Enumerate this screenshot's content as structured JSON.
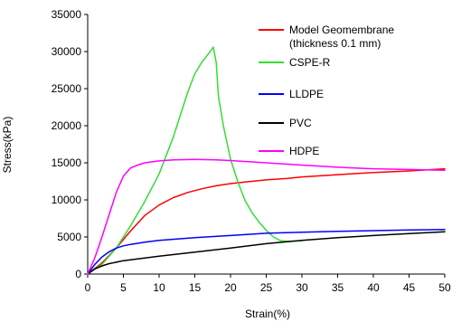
{
  "chart_data": {
    "type": "line",
    "title": "",
    "xlabel": "Strain(%)",
    "ylabel": "Stress(kPa)",
    "xlim": [
      0,
      50
    ],
    "ylim": [
      0,
      35000
    ],
    "x_ticks": [
      "0",
      "5",
      "10",
      "15",
      "20",
      "25",
      "30",
      "35",
      "40",
      "45",
      "50"
    ],
    "y_ticks": [
      "0",
      "5000",
      "10000",
      "15000",
      "20000",
      "25000",
      "30000",
      "35000"
    ],
    "grid": false,
    "legend_position": "top-right",
    "legend_entries": [
      {
        "label": "Model Geomembrane",
        "label2": "(thickness 0.1 mm)",
        "color": "#ff0000"
      },
      {
        "label": "CSPE-R",
        "label2": "",
        "color": "#33dd33"
      },
      {
        "label": "LLDPE",
        "label2": "",
        "color": "#0000ff"
      },
      {
        "label": "PVC",
        "label2": "",
        "color": "#000000"
      },
      {
        "label": "HDPE",
        "label2": "",
        "color": "#ff00ff"
      }
    ],
    "series": [
      {
        "name": "Model Geomembrane (thickness 0.1 mm)",
        "color": "#ff0000",
        "x": [
          0,
          2,
          4,
          6,
          8,
          10,
          12,
          14,
          16,
          18,
          20,
          22,
          25,
          28,
          30,
          35,
          40,
          45,
          50
        ],
        "y": [
          0,
          1500,
          3500,
          5800,
          7900,
          9300,
          10300,
          11000,
          11500,
          11900,
          12200,
          12400,
          12700,
          12900,
          13100,
          13400,
          13700,
          13900,
          14200
        ]
      },
      {
        "name": "CSPE-R",
        "color": "#33dd33",
        "x": [
          0,
          2,
          4,
          6,
          8,
          10,
          12,
          13,
          14,
          15,
          16,
          17,
          17.6,
          18,
          18.3,
          19,
          20,
          21,
          22,
          23,
          24,
          25,
          26,
          27,
          28,
          29,
          30
        ],
        "y": [
          0,
          1300,
          3500,
          6500,
          9800,
          13500,
          18500,
          21500,
          24500,
          27000,
          28600,
          29800,
          30600,
          28500,
          24000,
          20000,
          15500,
          12500,
          10000,
          8300,
          7000,
          5900,
          5000,
          4500,
          4400,
          4450,
          4500
        ]
      },
      {
        "name": "LLDPE",
        "color": "#0000ff",
        "x": [
          0,
          1,
          2,
          3,
          4,
          5,
          6,
          8,
          10,
          15,
          20,
          25,
          30,
          35,
          40,
          45,
          50
        ],
        "y": [
          0,
          1300,
          2300,
          3000,
          3500,
          3800,
          4000,
          4300,
          4550,
          4900,
          5200,
          5500,
          5650,
          5750,
          5850,
          5950,
          6000
        ]
      },
      {
        "name": "PVC",
        "color": "#000000",
        "x": [
          0,
          1,
          2,
          3,
          5,
          10,
          15,
          20,
          25,
          30,
          35,
          40,
          45,
          50
        ],
        "y": [
          0,
          700,
          1100,
          1400,
          1800,
          2400,
          2950,
          3500,
          4100,
          4550,
          4900,
          5200,
          5450,
          5700
        ]
      },
      {
        "name": "HDPE",
        "color": "#ff00ff",
        "x": [
          0,
          1,
          2,
          3,
          4,
          5,
          6,
          7,
          8,
          10,
          12,
          15,
          18,
          20,
          25,
          30,
          35,
          40,
          45,
          50
        ],
        "y": [
          0,
          2200,
          5000,
          8000,
          11000,
          13200,
          14300,
          14700,
          15000,
          15250,
          15400,
          15450,
          15400,
          15300,
          15000,
          14700,
          14400,
          14200,
          14100,
          14000
        ]
      }
    ]
  }
}
